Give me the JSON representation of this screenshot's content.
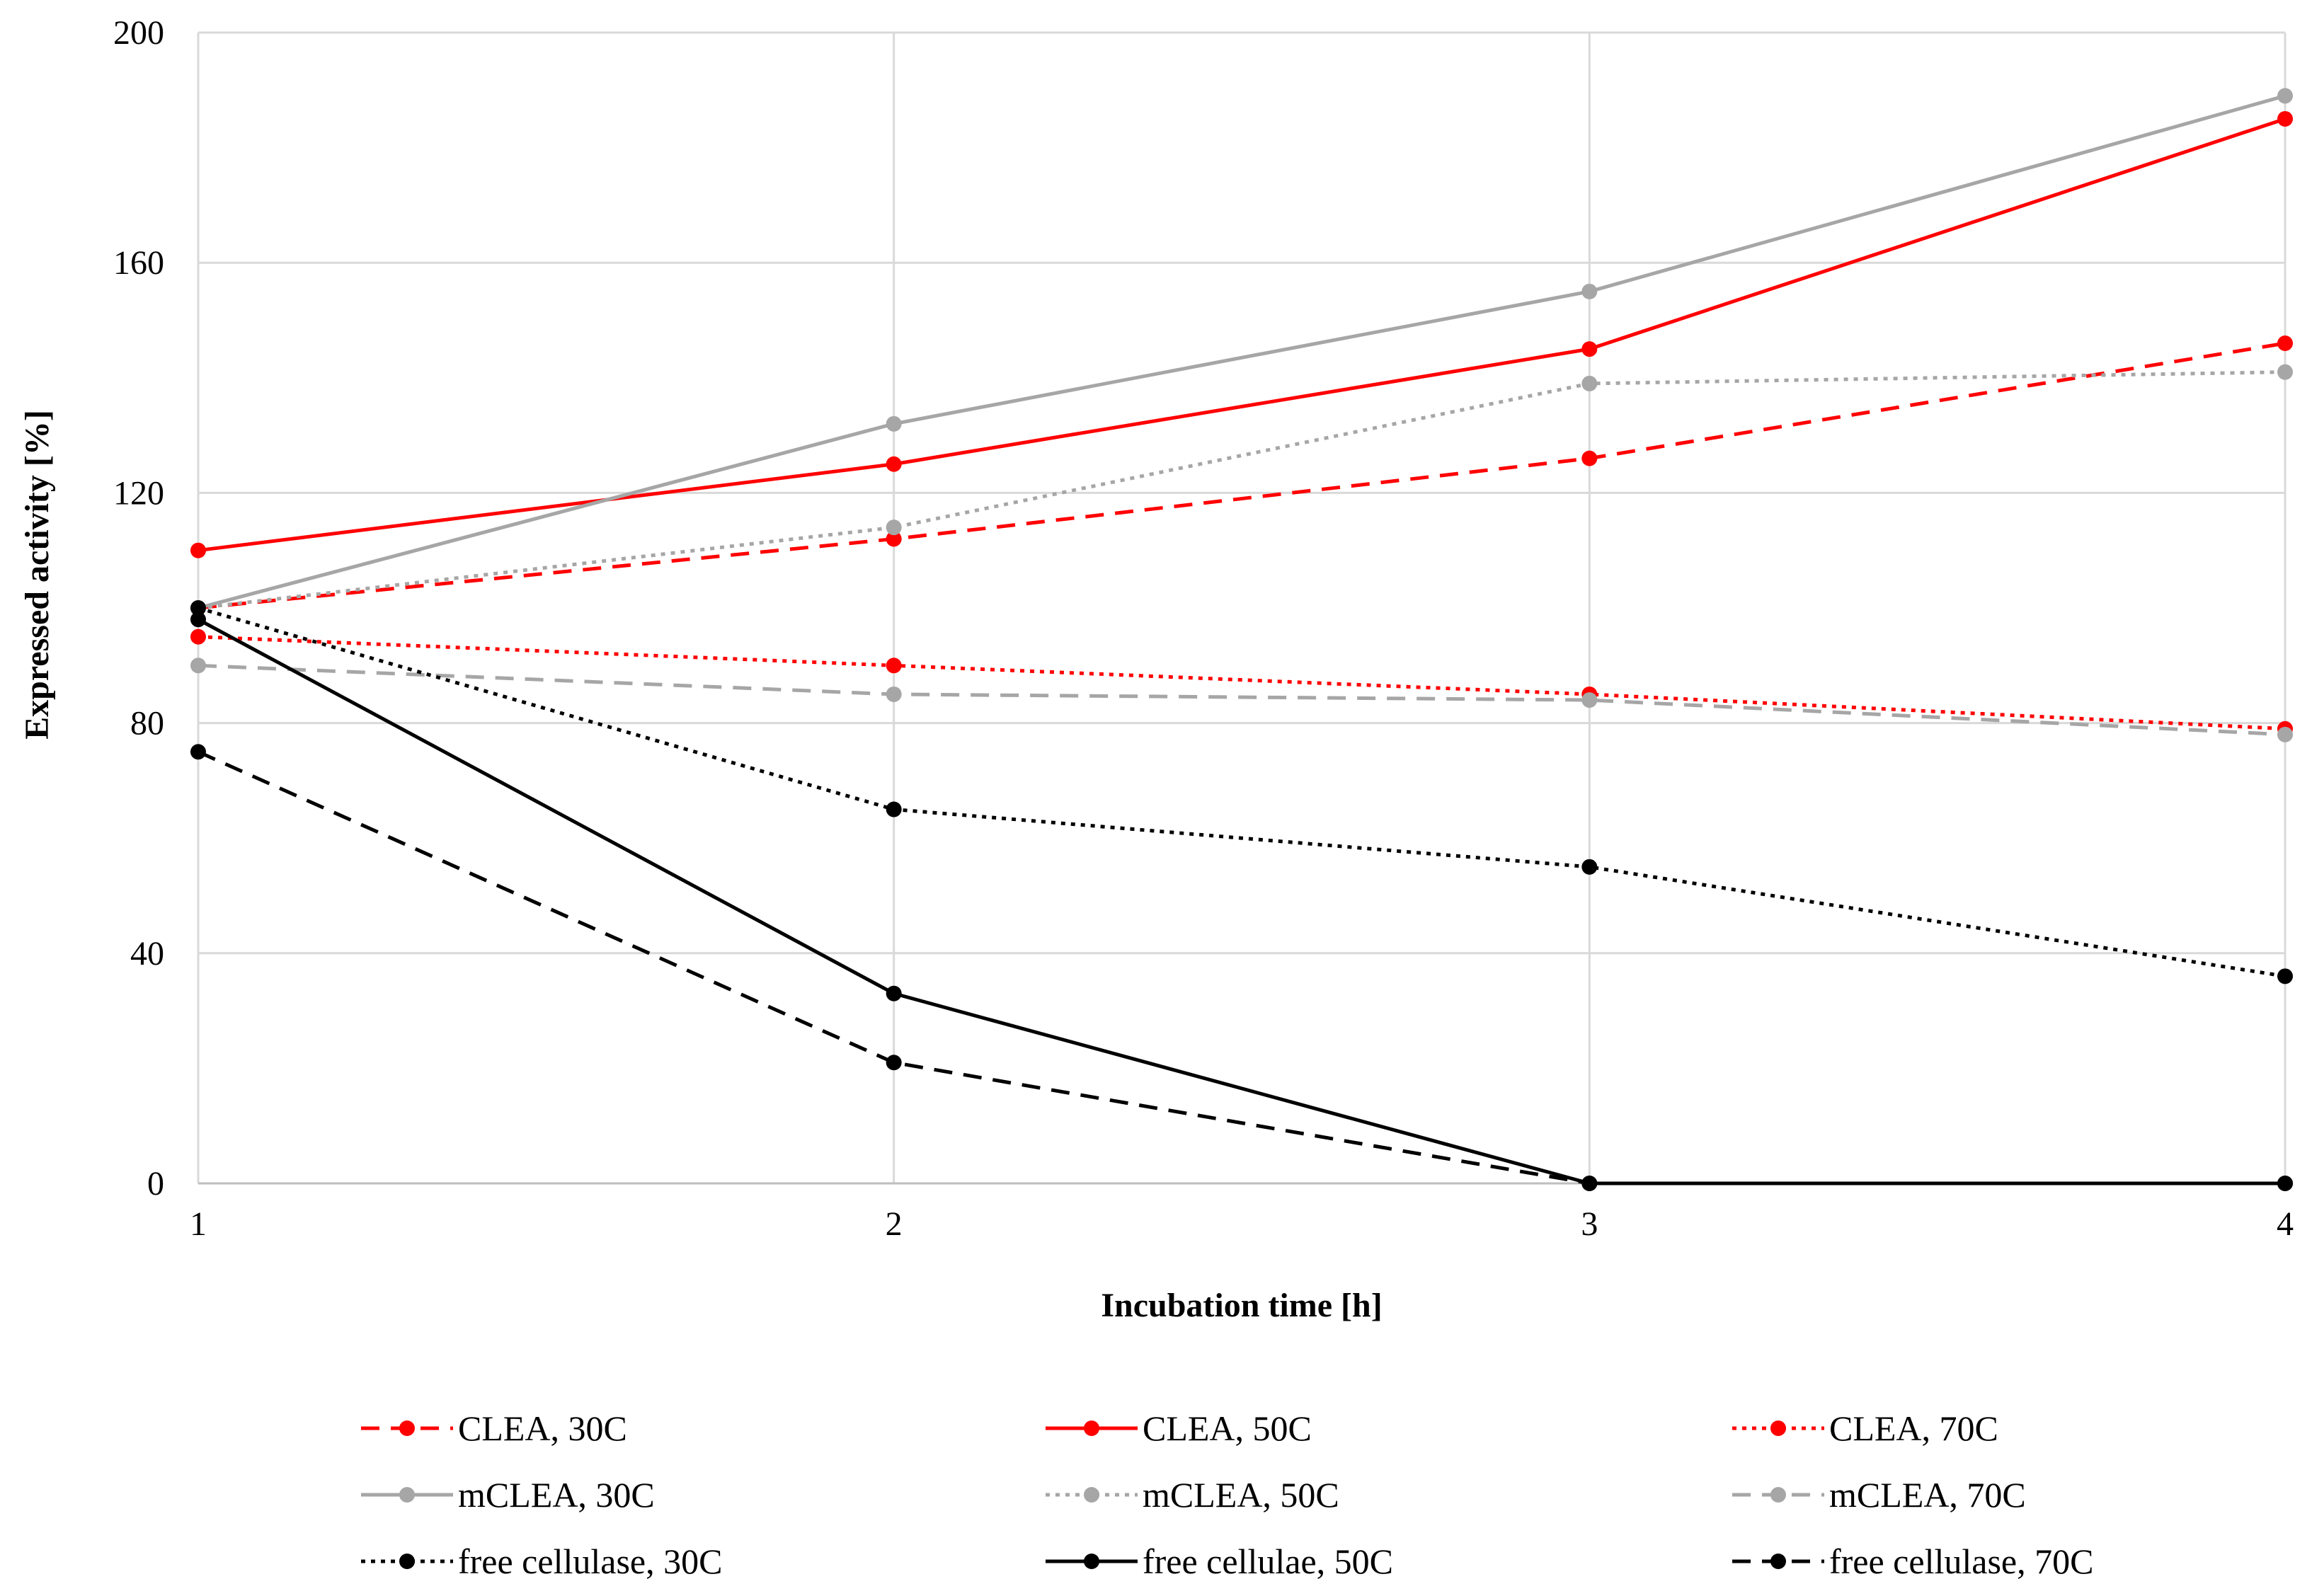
{
  "chart_data": {
    "type": "line",
    "title": "",
    "xlabel": "Incubation time [h]",
    "ylabel": "Expressed activity [%]",
    "x": [
      1,
      2,
      3,
      4
    ],
    "xlim": [
      1,
      4
    ],
    "ylim": [
      0,
      200
    ],
    "yticks": [
      0,
      40,
      80,
      120,
      160,
      200
    ],
    "xticks": [
      1,
      2,
      3,
      4
    ],
    "grid": true,
    "legend_position": "bottom",
    "series": [
      {
        "name": "CLEA, 30C",
        "values": [
          100,
          112,
          126,
          146
        ],
        "color": "#ff0000",
        "dash": "dashed"
      },
      {
        "name": "CLEA, 50C",
        "values": [
          110,
          125,
          145,
          185
        ],
        "color": "#ff0000",
        "dash": "solid"
      },
      {
        "name": "CLEA, 70C",
        "values": [
          95,
          90,
          85,
          79
        ],
        "color": "#ff0000",
        "dash": "dotted"
      },
      {
        "name": "mCLEA, 30C",
        "values": [
          100,
          132,
          155,
          189
        ],
        "color": "#a6a6a6",
        "dash": "solid"
      },
      {
        "name": "mCLEA, 50C",
        "values": [
          100,
          114,
          139,
          141
        ],
        "color": "#a6a6a6",
        "dash": "dotted"
      },
      {
        "name": "mCLEA, 70C",
        "values": [
          90,
          85,
          84,
          78
        ],
        "color": "#a6a6a6",
        "dash": "dashed"
      },
      {
        "name": "free cellulase, 30C",
        "values": [
          100,
          65,
          55,
          36
        ],
        "color": "#000000",
        "dash": "dotted"
      },
      {
        "name": "free cellulae, 50C",
        "values": [
          98,
          33,
          0,
          0
        ],
        "color": "#000000",
        "dash": "solid"
      },
      {
        "name": "free cellulase, 70C",
        "values": [
          75,
          21,
          0,
          0
        ],
        "color": "#000000",
        "dash": "dashed"
      }
    ]
  }
}
